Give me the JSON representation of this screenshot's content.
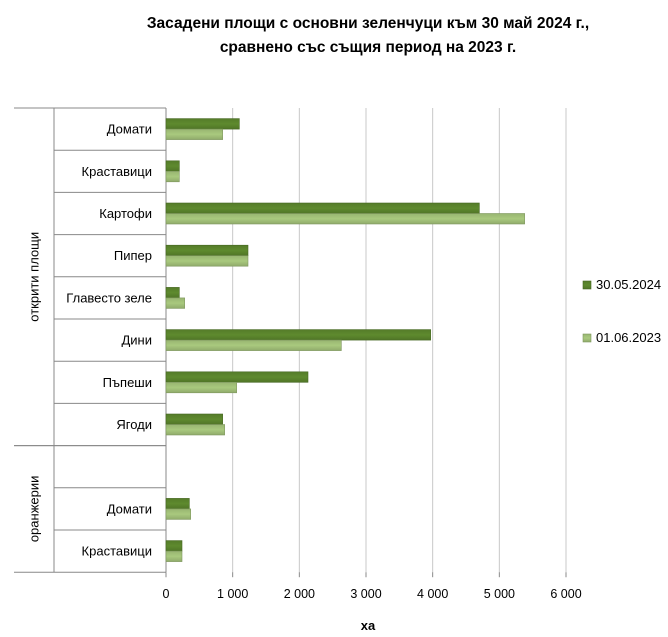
{
  "chart_data": {
    "type": "bar",
    "orientation": "horizontal",
    "title_line1": "Засадени площи с основни зеленчуци към 30 май 2024 г.,",
    "title_line2": "сравнено със същия период на 2023 г.",
    "xlabel": "ха",
    "xlim": [
      0,
      6000
    ],
    "xticks": [
      0,
      1000,
      2000,
      3000,
      4000,
      5000,
      6000
    ],
    "xtick_labels": [
      "0",
      "1 000",
      "2 000",
      "3 000",
      "4 000",
      "5 000",
      "6 000"
    ],
    "grid": true,
    "legend_position": "right",
    "groups": [
      {
        "name": "открити площи",
        "categories": [
          "Домати",
          "Краставици",
          "Картофи",
          "Пипер",
          "Главесто зеле",
          "Дини",
          "Пъпеши",
          "Ягоди"
        ]
      },
      {
        "name": "оранжерии",
        "categories": [
          "",
          "Домати",
          "Краставици"
        ]
      }
    ],
    "series": [
      {
        "name": "30.05.2024",
        "color": "#5e8a2e",
        "values": [
          1100,
          200,
          4700,
          1230,
          200,
          3970,
          2130,
          850,
          null,
          350,
          240
        ]
      },
      {
        "name": "01.06.2023",
        "color": "#a9c97e",
        "values": [
          850,
          200,
          5380,
          1230,
          280,
          2630,
          1060,
          880,
          null,
          370,
          240
        ]
      }
    ]
  }
}
